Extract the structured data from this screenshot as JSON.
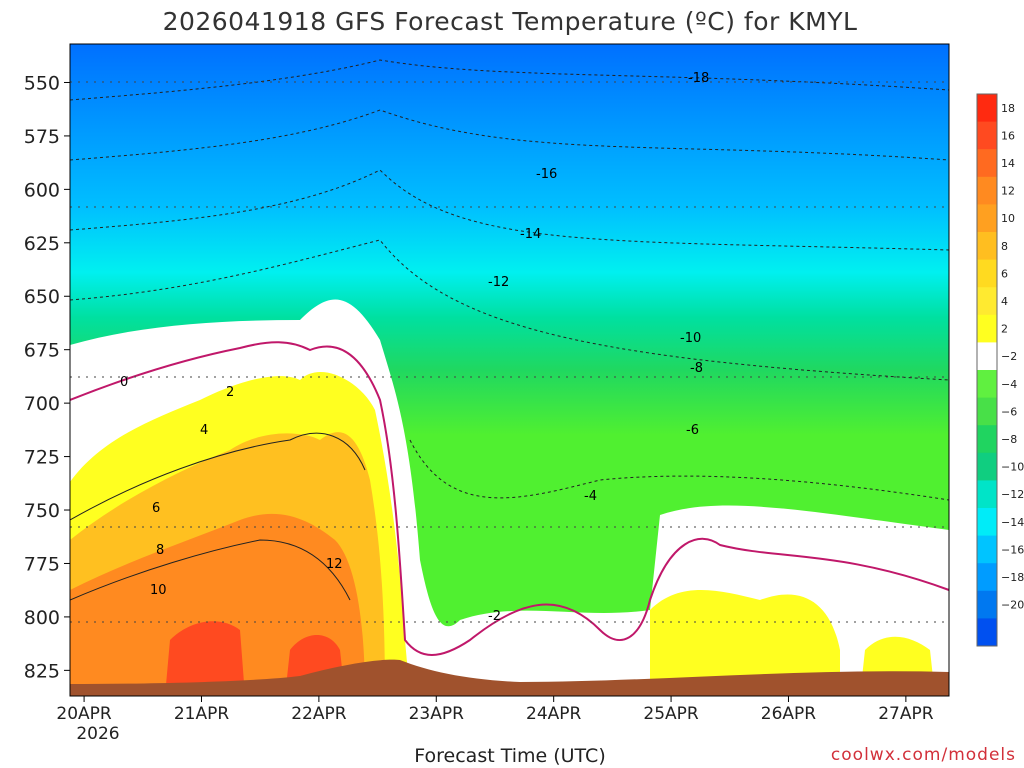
{
  "chart_data": {
    "type": "heatmap",
    "title": "2026041918 GFS Forecast Temperature (ºC) for KMYL",
    "xlabel": "Forecast Time (UTC)",
    "ylabel": "",
    "x_ticks": [
      "20APR",
      "21APR",
      "22APR",
      "23APR",
      "24APR",
      "25APR",
      "26APR",
      "27APR"
    ],
    "x_year": "2026",
    "y_ticks": [
      550,
      575,
      600,
      625,
      650,
      675,
      700,
      725,
      750,
      775,
      800,
      825
    ],
    "ylim": [
      837,
      532
    ],
    "xlim": [
      0,
      7.45
    ],
    "colorbar": {
      "labels": [
        "18",
        "16",
        "14",
        "12",
        "10",
        "8",
        "6",
        "4",
        "2",
        "−2",
        "−4",
        "−6",
        "−8",
        "−10",
        "−12",
        "−14",
        "−16",
        "−18",
        "−20"
      ],
      "colors": [
        "#ff2a10",
        "#ff4a20",
        "#ff6a20",
        "#ff8a20",
        "#ffa020",
        "#ffbe20",
        "#ffda20",
        "#ffea30",
        "#ffff20",
        "#ffffff",
        "#60f040",
        "#48e048",
        "#20d460",
        "#10ce80",
        "#00e4c8",
        "#00ecf8",
        "#00c4ff",
        "#009cff",
        "#0078f0",
        "#0050f0"
      ]
    },
    "isotherms_labeled": [
      "-18",
      "-16",
      "-14",
      "-12",
      "-10",
      "-8",
      "-6",
      "-4",
      "-2",
      "0",
      "2",
      "4",
      "6",
      "8",
      "10",
      "12"
    ],
    "surface_pressure_band": [
      836,
      818
    ],
    "credit": "coolwx.com/models"
  }
}
